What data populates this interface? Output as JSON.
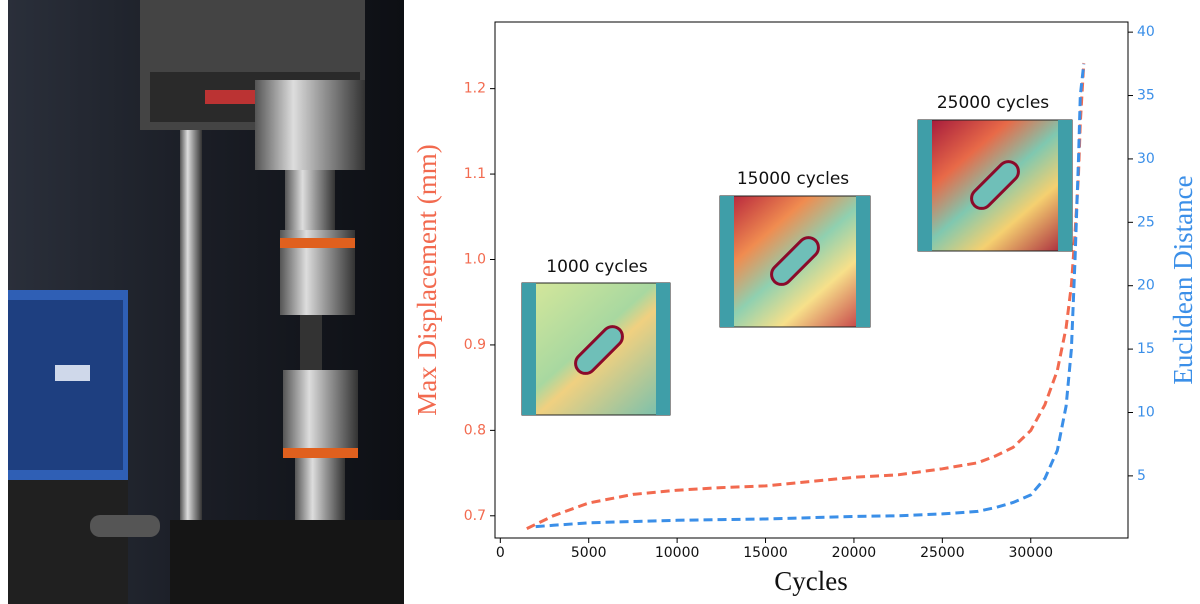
{
  "chart_data": {
    "type": "line",
    "x_label": "Cycles",
    "y_label": "Max Displacement (mm)",
    "y2_label": "Euclidean Distance",
    "x": [
      1500,
      2000,
      3000,
      5000,
      7500,
      10000,
      12500,
      15000,
      17500,
      20000,
      22500,
      25000,
      27000,
      28000,
      29000,
      30000,
      30800,
      31500,
      32000,
      32300,
      32500,
      32700,
      32800,
      33000
    ],
    "series": [
      {
        "name": "Max Displacement (mm)",
        "color": "#f26a4f",
        "axis": "y",
        "values": [
          0.685,
          0.69,
          0.7,
          0.715,
          0.725,
          0.73,
          0.733,
          0.735,
          0.74,
          0.745,
          0.748,
          0.755,
          0.762,
          0.77,
          0.78,
          0.8,
          0.83,
          0.87,
          0.92,
          0.97,
          1.03,
          1.1,
          1.16,
          1.23
        ]
      },
      {
        "name": "Euclidean Distance",
        "color": "#3b8fe8",
        "axis": "y2",
        "values": [
          null,
          1.0,
          1.1,
          1.3,
          1.4,
          1.5,
          1.55,
          1.6,
          1.7,
          1.8,
          1.85,
          2.0,
          2.2,
          2.5,
          2.9,
          3.5,
          4.8,
          7.0,
          10.5,
          15.0,
          22.0,
          30.0,
          35.0,
          37.5
        ]
      }
    ],
    "xlim": [
      -300,
      35500
    ],
    "xticks": [
      0,
      5000,
      10000,
      15000,
      20000,
      25000,
      30000
    ],
    "ylim": [
      0.674,
      1.278
    ],
    "yticks": [
      0.7,
      0.8,
      0.9,
      {
        "value": 1,
        "label": "1.0"
      },
      1.1,
      1.2
    ],
    "y2lim": [
      0.1,
      40.8
    ],
    "y2ticks": [
      5,
      10,
      15,
      20,
      25,
      30,
      35,
      40
    ],
    "grid": false,
    "annotations": [
      "1000 cycles",
      "15000 cycles",
      "25000 cycles"
    ]
  }
}
